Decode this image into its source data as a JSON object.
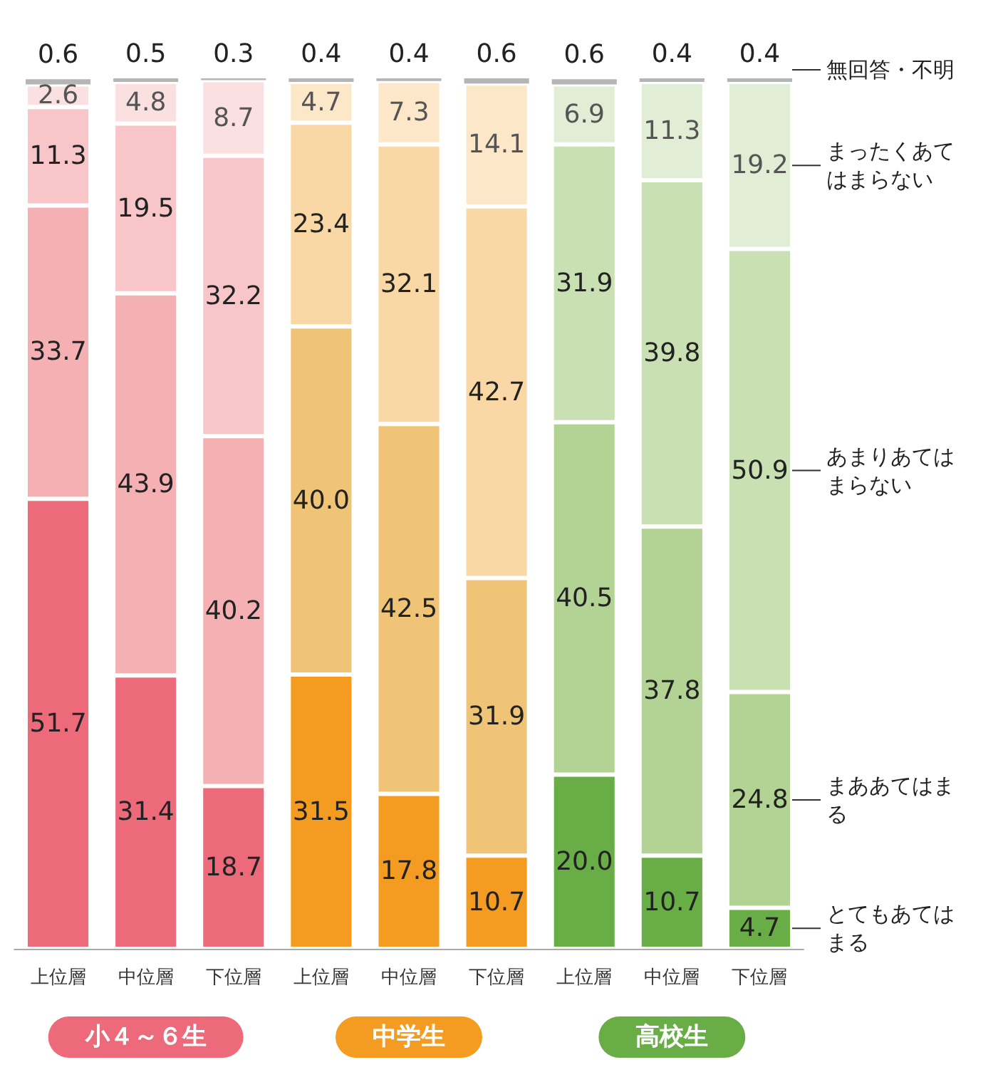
{
  "chart_data": {
    "type": "bar",
    "stacked": true,
    "data_labels": true,
    "legend": false,
    "tick_labels": "x",
    "ylim": [
      0,
      100
    ],
    "categories": [
      "上位層",
      "中位層",
      "下位層",
      "上位層",
      "中位層",
      "下位層",
      "上位層",
      "中位層",
      "下位層"
    ],
    "annotations": [
      "小４～６生",
      "中学生",
      "高校生"
    ],
    "series": [
      {
        "name": "とてもあてはまる",
        "value_labels": [
          "51.7",
          "31.4",
          "18.7",
          "31.5",
          "17.8",
          "10.7",
          "20.0",
          "10.7",
          "4.7"
        ],
        "colors": [
          "#ec6a7a",
          "#ec6a7a",
          "#ec6a7a",
          "#f39c21",
          "#f39c21",
          "#f39c21",
          "#68ad45",
          "#68ad45",
          "#68ad45"
        ],
        "values": [
          51.7,
          31.4,
          18.7,
          31.5,
          17.8,
          10.7,
          20.0,
          10.7,
          4.7
        ]
      },
      {
        "name": "まああてはまる",
        "value_labels": [
          "33.7",
          "43.9",
          "40.2",
          "40.0",
          "42.5",
          "31.9",
          "40.5",
          "37.8",
          "24.8"
        ],
        "colors": [
          "#f4b0b3",
          "#f4b0b3",
          "#f4b0b3",
          "#f0c476",
          "#f0c476",
          "#f0c476",
          "#b3d394",
          "#b3d394",
          "#b3d394"
        ],
        "values": [
          33.7,
          43.9,
          40.2,
          40.0,
          42.5,
          31.9,
          40.5,
          37.8,
          24.8
        ]
      },
      {
        "name": "あまりあてはまらない",
        "colors": [
          "#f8c6c9",
          "#f8c6c9",
          "#f8c6c9",
          "#fad8a5",
          "#fad8a5",
          "#fad8a5",
          "#c9e0b2",
          "#c9e0b2",
          "#c9e0b2"
        ],
        "values": [
          11.3,
          19.5,
          32.2,
          23.4,
          32.1,
          42.7,
          31.9,
          39.8,
          50.9
        ]
      },
      {
        "name": "まったくあてはまらない",
        "colors": [
          "#fbe0e2",
          "#fbe0e2",
          "#fbe0e2",
          "#fde7c9",
          "#fde7c9",
          "#fde7c9",
          "#e1eed5",
          "#e1eed5",
          "#e1eed5"
        ],
        "values": [
          2.6,
          4.8,
          8.7,
          4.7,
          7.3,
          14.1,
          6.9,
          11.3,
          19.2
        ]
      },
      {
        "name": "無回答・不明",
        "colors": [
          "#b5b5b5",
          "#b5b5b5",
          "#b5b5b5",
          "#b5b5b5",
          "#b5b5b5",
          "#b5b5b5",
          "#b5b5b5",
          "#b5b5b5",
          "#b5b5b5"
        ],
        "values": [
          0.6,
          0.5,
          0.3,
          0.4,
          0.4,
          0.6,
          0.6,
          0.4,
          0.4
        ]
      }
    ]
  }
}
